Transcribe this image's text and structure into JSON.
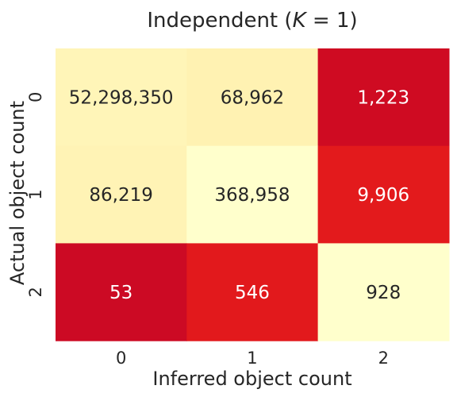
{
  "chart_data": {
    "type": "heatmap",
    "title": "Independent",
    "title_math_var": "K",
    "title_math_rhs": "1",
    "xlabel": "Inferred object count",
    "ylabel": "Actual object count",
    "x_categories": [
      "0",
      "1",
      "2"
    ],
    "y_categories": [
      "0",
      "1",
      "2"
    ],
    "values": [
      [
        52298350,
        68962,
        1223
      ],
      [
        86219,
        368958,
        9906
      ],
      [
        53,
        546,
        928
      ]
    ],
    "cell_labels": [
      [
        "52,298,350",
        "68,962",
        "1,223"
      ],
      [
        "86,219",
        "368,958",
        "9,906"
      ],
      [
        "53",
        "546",
        "928"
      ]
    ],
    "colors": [
      [
        "#fff5b8",
        "#fff2b2",
        "#cf0b22"
      ],
      [
        "#fff3b5",
        "#ffffcc",
        "#e31a1c"
      ],
      [
        "#cc0a24",
        "#e2191c",
        "#ffffcc"
      ]
    ],
    "text_colors": [
      [
        "#262626",
        "#262626",
        "#ffffff"
      ],
      [
        "#262626",
        "#262626",
        "#ffffff"
      ],
      [
        "#ffffff",
        "#ffffff",
        "#262626"
      ]
    ],
    "colorbar": false
  }
}
